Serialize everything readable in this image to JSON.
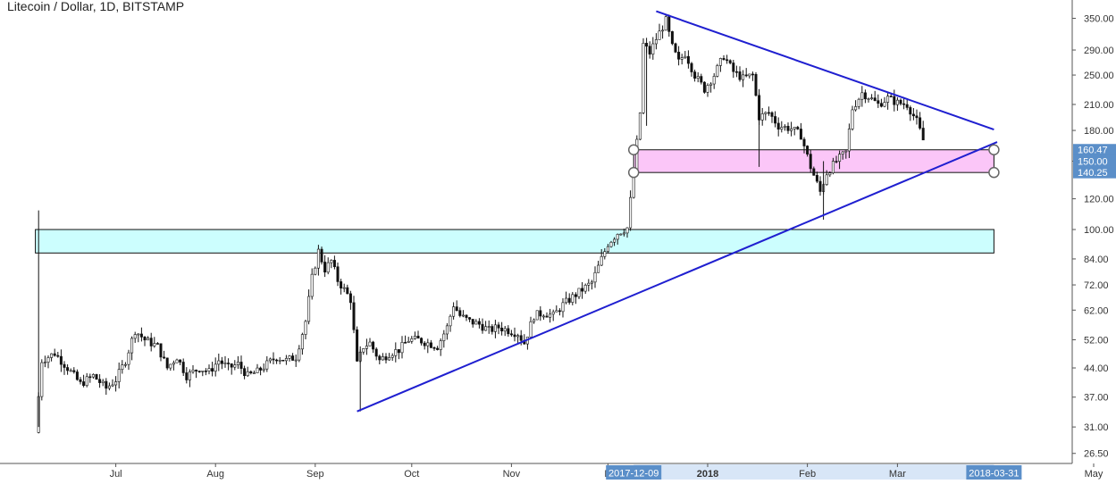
{
  "title": "Litecoin / Dollar, 1D, BITSTAMP",
  "chart_data": {
    "type": "candlestick",
    "title": "Litecoin / Dollar, 1D, BITSTAMP",
    "y_scale": "log",
    "ylim": [
      25.5,
      380
    ],
    "y_ticks": [
      "350.00",
      "290.00",
      "250.00",
      "210.00",
      "180.00",
      "150.00",
      "120.00",
      "100.00",
      "84.00",
      "72.00",
      "62.00",
      "52.00",
      "44.00",
      "37.00",
      "31.00",
      "26.50"
    ],
    "x_ticks": [
      {
        "label": "Jul",
        "date": "2017-07-01"
      },
      {
        "label": "Aug",
        "date": "2017-08-01"
      },
      {
        "label": "Sep",
        "date": "2017-09-01"
      },
      {
        "label": "Oct",
        "date": "2017-10-01"
      },
      {
        "label": "Nov",
        "date": "2017-11-01"
      },
      {
        "label": "D",
        "date": "2017-12-01"
      },
      {
        "label": "2018",
        "date": "2018-01-01"
      },
      {
        "label": "Feb",
        "date": "2018-02-01"
      },
      {
        "label": "Mar",
        "date": "2018-03-01"
      },
      {
        "label": "May",
        "date": "2018-05-01"
      }
    ],
    "x_highlight_labels": [
      {
        "label": "2017-12-09",
        "date": "2017-12-09"
      },
      {
        "label": "2018-03-31",
        "date": "2018-03-31"
      }
    ],
    "price_labels": [
      {
        "label": "160.47",
        "value": 160.47
      },
      {
        "label": "150.00",
        "value": 150.0
      },
      {
        "label": "140.25",
        "value": 140.25
      }
    ],
    "series_close": [
      {
        "x": "2017-06-06",
        "y": 30
      },
      {
        "x": "2017-06-08",
        "y": 46
      },
      {
        "x": "2017-06-12",
        "y": 48
      },
      {
        "x": "2017-06-16",
        "y": 44
      },
      {
        "x": "2017-06-20",
        "y": 40
      },
      {
        "x": "2017-06-24",
        "y": 42
      },
      {
        "x": "2017-06-28",
        "y": 39
      },
      {
        "x": "2017-07-01",
        "y": 41
      },
      {
        "x": "2017-07-04",
        "y": 46
      },
      {
        "x": "2017-07-07",
        "y": 55
      },
      {
        "x": "2017-07-10",
        "y": 52
      },
      {
        "x": "2017-07-14",
        "y": 50
      },
      {
        "x": "2017-07-17",
        "y": 44
      },
      {
        "x": "2017-07-20",
        "y": 47
      },
      {
        "x": "2017-07-23",
        "y": 42
      },
      {
        "x": "2017-07-27",
        "y": 44
      },
      {
        "x": "2017-07-30",
        "y": 43
      },
      {
        "x": "2017-08-02",
        "y": 46
      },
      {
        "x": "2017-08-05",
        "y": 44
      },
      {
        "x": "2017-08-08",
        "y": 45
      },
      {
        "x": "2017-08-11",
        "y": 42
      },
      {
        "x": "2017-08-14",
        "y": 43
      },
      {
        "x": "2017-08-17",
        "y": 45
      },
      {
        "x": "2017-08-20",
        "y": 47
      },
      {
        "x": "2017-08-23",
        "y": 46
      },
      {
        "x": "2017-08-26",
        "y": 47
      },
      {
        "x": "2017-08-29",
        "y": 58
      },
      {
        "x": "2017-08-31",
        "y": 75
      },
      {
        "x": "2017-09-02",
        "y": 88
      },
      {
        "x": "2017-09-04",
        "y": 79
      },
      {
        "x": "2017-09-06",
        "y": 83
      },
      {
        "x": "2017-09-08",
        "y": 74
      },
      {
        "x": "2017-09-10",
        "y": 70
      },
      {
        "x": "2017-09-12",
        "y": 66
      },
      {
        "x": "2017-09-14",
        "y": 45
      },
      {
        "x": "2017-09-16",
        "y": 50
      },
      {
        "x": "2017-09-18",
        "y": 51
      },
      {
        "x": "2017-09-21",
        "y": 46
      },
      {
        "x": "2017-09-24",
        "y": 48
      },
      {
        "x": "2017-09-27",
        "y": 49
      },
      {
        "x": "2017-09-30",
        "y": 52
      },
      {
        "x": "2017-10-03",
        "y": 52
      },
      {
        "x": "2017-10-06",
        "y": 51
      },
      {
        "x": "2017-10-09",
        "y": 50
      },
      {
        "x": "2017-10-12",
        "y": 56
      },
      {
        "x": "2017-10-14",
        "y": 64
      },
      {
        "x": "2017-10-16",
        "y": 60
      },
      {
        "x": "2017-10-19",
        "y": 58
      },
      {
        "x": "2017-10-22",
        "y": 57
      },
      {
        "x": "2017-10-25",
        "y": 55
      },
      {
        "x": "2017-10-28",
        "y": 56
      },
      {
        "x": "2017-10-31",
        "y": 55
      },
      {
        "x": "2017-11-03",
        "y": 54
      },
      {
        "x": "2017-11-05",
        "y": 51
      },
      {
        "x": "2017-11-08",
        "y": 60
      },
      {
        "x": "2017-11-11",
        "y": 61
      },
      {
        "x": "2017-11-14",
        "y": 60
      },
      {
        "x": "2017-11-17",
        "y": 64
      },
      {
        "x": "2017-11-20",
        "y": 67
      },
      {
        "x": "2017-11-23",
        "y": 70
      },
      {
        "x": "2017-11-26",
        "y": 73
      },
      {
        "x": "2017-11-29",
        "y": 84
      },
      {
        "x": "2017-12-01",
        "y": 92
      },
      {
        "x": "2017-12-04",
        "y": 98
      },
      {
        "x": "2017-12-07",
        "y": 101
      },
      {
        "x": "2017-12-09",
        "y": 140
      },
      {
        "x": "2017-12-11",
        "y": 200
      },
      {
        "x": "2017-12-12",
        "y": 300
      },
      {
        "x": "2017-12-14",
        "y": 285
      },
      {
        "x": "2017-12-16",
        "y": 310
      },
      {
        "x": "2017-12-19",
        "y": 345
      },
      {
        "x": "2017-12-21",
        "y": 295
      },
      {
        "x": "2017-12-23",
        "y": 270
      },
      {
        "x": "2017-12-25",
        "y": 285
      },
      {
        "x": "2017-12-28",
        "y": 250
      },
      {
        "x": "2017-12-31",
        "y": 230
      },
      {
        "x": "2018-01-03",
        "y": 250
      },
      {
        "x": "2018-01-06",
        "y": 280
      },
      {
        "x": "2018-01-09",
        "y": 255
      },
      {
        "x": "2018-01-12",
        "y": 245
      },
      {
        "x": "2018-01-15",
        "y": 250
      },
      {
        "x": "2018-01-17",
        "y": 195
      },
      {
        "x": "2018-01-20",
        "y": 200
      },
      {
        "x": "2018-01-23",
        "y": 185
      },
      {
        "x": "2018-01-27",
        "y": 182
      },
      {
        "x": "2018-01-30",
        "y": 175
      },
      {
        "x": "2018-02-02",
        "y": 145
      },
      {
        "x": "2018-02-05",
        "y": 125
      },
      {
        "x": "2018-02-07",
        "y": 140
      },
      {
        "x": "2018-02-10",
        "y": 150
      },
      {
        "x": "2018-02-13",
        "y": 158
      },
      {
        "x": "2018-02-15",
        "y": 205
      },
      {
        "x": "2018-02-18",
        "y": 225
      },
      {
        "x": "2018-02-20",
        "y": 220
      },
      {
        "x": "2018-02-23",
        "y": 210
      },
      {
        "x": "2018-02-26",
        "y": 218
      },
      {
        "x": "2018-03-01",
        "y": 212
      },
      {
        "x": "2018-03-04",
        "y": 210
      },
      {
        "x": "2018-03-07",
        "y": 190
      },
      {
        "x": "2018-03-09",
        "y": 170
      }
    ],
    "rectangles": [
      {
        "name": "resistance-zone-cyan",
        "x0": "2017-06-06",
        "x1": "2018-03-31",
        "y0": 87,
        "y1": 100,
        "fill": "#ccfefe",
        "stroke": "#111111"
      },
      {
        "name": "support-zone-pink",
        "x0": "2017-12-09",
        "x1": "2018-03-31",
        "y0": 140.25,
        "y1": 160.47,
        "fill": "#fbc6f8",
        "stroke": "#111111"
      }
    ],
    "trendlines": [
      {
        "name": "descending-trendline",
        "x0": "2017-12-16",
        "y0": 365,
        "x1": "2018-03-31",
        "y1": 181,
        "color": "#1f1fd0"
      },
      {
        "name": "ascending-trendline",
        "x0": "2017-09-14",
        "y0": 34,
        "x1": "2018-04-01",
        "y1": 168,
        "color": "#1f1fd0"
      }
    ],
    "colors": {
      "up": "#4caf50",
      "down": "#111111",
      "trend": "#1f1fd0",
      "axis_highlight": "#5b8fc9",
      "label_bg": "#5b8fc9"
    }
  }
}
